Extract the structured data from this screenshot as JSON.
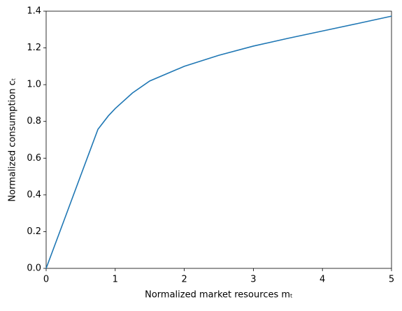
{
  "chart_data": {
    "type": "line",
    "xlabel": "Normalized market resources mₜ",
    "ylabel": "Normalized consumption cₜ",
    "x": [
      0,
      0.25,
      0.5,
      0.75,
      0.9,
      1,
      1.25,
      1.5,
      2,
      2.5,
      3,
      3.5,
      4,
      4.5,
      5
    ],
    "series": [
      {
        "color": "#1f77b4",
        "values": [
          0,
          0.252,
          0.505,
          0.757,
          0.83,
          0.87,
          0.955,
          1.02,
          1.1,
          1.16,
          1.21,
          1.252,
          1.292,
          1.332,
          1.373
        ]
      }
    ],
    "xlim": [
      0,
      5
    ],
    "ylim": [
      0,
      1.4
    ],
    "xticks": [
      0,
      1,
      2,
      3,
      4,
      5
    ],
    "yticks": [
      {
        "value": 0,
        "label": "0.0"
      },
      0.2,
      0.4,
      0.6,
      0.8,
      {
        "value": 1,
        "label": "1.0"
      },
      1.2,
      1.4
    ],
    "grid": false
  }
}
